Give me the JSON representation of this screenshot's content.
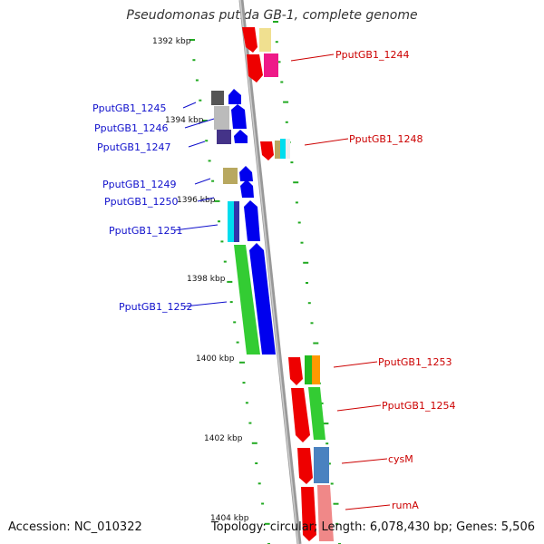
{
  "title": "Pseudomonas putida GB-1, complete genome",
  "footer": {
    "accession": "Accession: NC_010322",
    "summary": "Topology: circular; Length: 6,078,430 bp; Genes: 5,506"
  },
  "ticks": [
    "1392 kbp",
    "1394 kbp",
    "1396 kbp",
    "1398 kbp",
    "1400 kbp",
    "1402 kbp",
    "1404 kbp"
  ],
  "genes_left": [
    {
      "name": "PputGB1_1245",
      "color": "#1010cc"
    },
    {
      "name": "PputGB1_1246",
      "color": "#1010cc"
    },
    {
      "name": "PputGB1_1247",
      "color": "#1010cc"
    },
    {
      "name": "PputGB1_1249",
      "color": "#1010cc"
    },
    {
      "name": "PputGB1_1250",
      "color": "#1010cc"
    },
    {
      "name": "PputGB1_1251",
      "color": "#1010cc"
    },
    {
      "name": "PputGB1_1252",
      "color": "#1010cc"
    }
  ],
  "genes_right": [
    {
      "name": "PputGB1_1244",
      "color": "#cc0000"
    },
    {
      "name": "PputGB1_1248",
      "color": "#cc0000"
    },
    {
      "name": "PputGB1_1253",
      "color": "#cc0000"
    },
    {
      "name": "PputGB1_1254",
      "color": "#cc0000"
    },
    {
      "name": "cysM",
      "color": "#cc0000"
    },
    {
      "name": "rumA",
      "color": "#cc0000"
    }
  ],
  "colors": {
    "forward_strand": "#0000ee",
    "reverse_strand": "#ee0000",
    "axis": "#888888",
    "tick": "#22aa22"
  }
}
